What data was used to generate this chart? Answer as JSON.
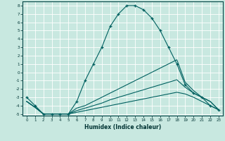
{
  "xlabel": "Humidex (Indice chaleur)",
  "xlim": [
    -0.5,
    23.5
  ],
  "ylim": [
    -5.2,
    8.5
  ],
  "background_color": "#c8e8e0",
  "grid_color": "#ffffff",
  "line_color": "#006060",
  "lines": [
    {
      "x": [
        0,
        1,
        2,
        3,
        4,
        5,
        6,
        7,
        8,
        9,
        10,
        11,
        12,
        13,
        14,
        15,
        16,
        17,
        18,
        19,
        20,
        21,
        22,
        23
      ],
      "y": [
        -3,
        -4,
        -5,
        -5,
        -5,
        -5,
        -3.5,
        -1,
        1,
        3,
        5.5,
        7,
        8,
        8,
        7.5,
        6.5,
        5,
        3,
        1,
        -1.5,
        -2.5,
        -3,
        -4,
        -4.5
      ],
      "marker": "+"
    },
    {
      "x": [
        0,
        1,
        2,
        3,
        4,
        5,
        6,
        7,
        8,
        9,
        10,
        11,
        12,
        13,
        14,
        15,
        16,
        17,
        18,
        19,
        20,
        21,
        22,
        23
      ],
      "y": [
        -3.5,
        -4.2,
        -5,
        -5,
        -5,
        -5,
        -4.8,
        -4.6,
        -4.4,
        -4.2,
        -4,
        -3.8,
        -3.6,
        -3.4,
        -3.2,
        -3,
        -2.8,
        -2.6,
        -2.4,
        -2.6,
        -3.0,
        -3.5,
        -4.0,
        -4.5
      ],
      "marker": null
    },
    {
      "x": [
        0,
        1,
        2,
        3,
        4,
        5,
        6,
        7,
        8,
        9,
        10,
        11,
        12,
        13,
        14,
        15,
        16,
        17,
        18,
        19,
        20,
        21,
        22,
        23
      ],
      "y": [
        -3.5,
        -4.2,
        -5,
        -5,
        -5,
        -5,
        -4.6,
        -4.3,
        -4.0,
        -3.7,
        -3.3,
        -3.0,
        -2.7,
        -2.4,
        -2.1,
        -1.8,
        -1.5,
        -1.2,
        -0.9,
        -1.8,
        -2.5,
        -3.0,
        -3.5,
        -4.5
      ],
      "marker": null
    },
    {
      "x": [
        0,
        1,
        2,
        3,
        4,
        5,
        6,
        7,
        8,
        9,
        10,
        11,
        12,
        13,
        14,
        15,
        16,
        17,
        18,
        19,
        20,
        21,
        22,
        23
      ],
      "y": [
        -3.5,
        -4.2,
        -5,
        -5,
        -5,
        -5,
        -4.3,
        -4.0,
        -3.5,
        -3.0,
        -2.5,
        -2.0,
        -1.5,
        -1.0,
        -0.5,
        0.0,
        0.5,
        1.0,
        1.5,
        -1.2,
        -2.2,
        -3.0,
        -3.5,
        -4.5
      ],
      "marker": null
    }
  ],
  "yticks": [
    -5,
    -4,
    -3,
    -2,
    -1,
    0,
    1,
    2,
    3,
    4,
    5,
    6,
    7,
    8
  ],
  "xticks": [
    0,
    1,
    2,
    3,
    4,
    5,
    6,
    7,
    8,
    9,
    10,
    11,
    12,
    13,
    14,
    15,
    16,
    17,
    18,
    19,
    20,
    21,
    22,
    23
  ]
}
